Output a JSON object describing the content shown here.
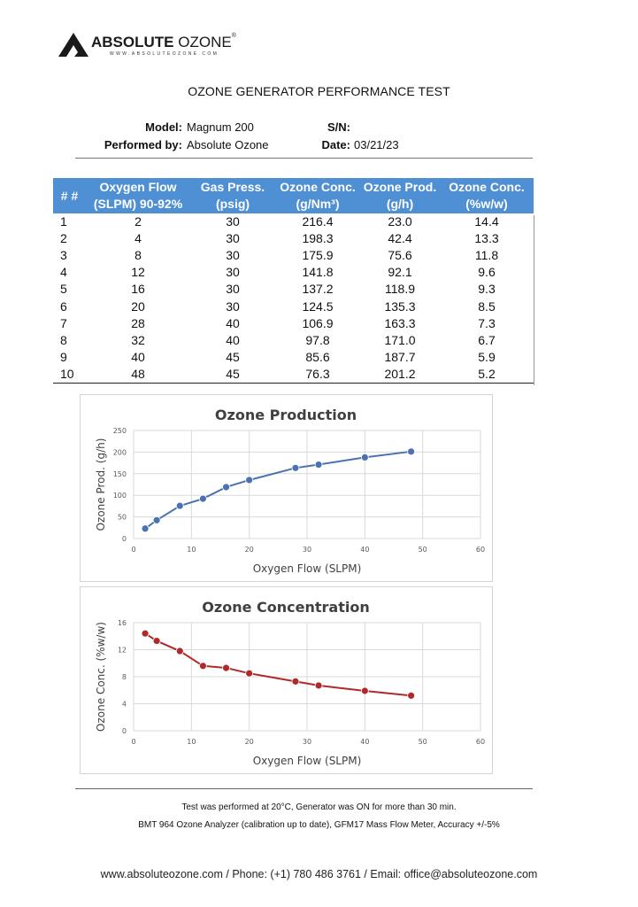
{
  "header": {
    "logo_bold": "ABSOLUTE",
    "logo_light": "OZONE",
    "logo_reg": "®",
    "logo_url": "WWW.ABSOLUTEOZONE.COM"
  },
  "title": "OZONE GENERATOR PERFORMANCE TEST",
  "meta": {
    "model_label": "Model:",
    "model_value": "Magnum 200",
    "sn_label": "S/N:",
    "sn_value": "",
    "performed_label": "Performed by:",
    "performed_value": "Absolute Ozone",
    "date_label": "Date:",
    "date_value": "03/21/23"
  },
  "table": {
    "headers": [
      [
        "# #",
        ""
      ],
      [
        "Oxygen Flow",
        "(SLPM) 90-92%"
      ],
      [
        "Gas Press.",
        "(psig)"
      ],
      [
        "Ozone Conc.",
        "(g/Nm³)"
      ],
      [
        "Ozone Prod.",
        "(g/h)"
      ],
      [
        "Ozone Conc.",
        "(%w/w)"
      ]
    ],
    "rows": [
      [
        "1",
        "2",
        "30",
        "216.4",
        "23.0",
        "14.4"
      ],
      [
        "2",
        "4",
        "30",
        "198.3",
        "42.4",
        "13.3"
      ],
      [
        "3",
        "8",
        "30",
        "175.9",
        "75.6",
        "11.8"
      ],
      [
        "4",
        "12",
        "30",
        "141.8",
        "92.1",
        "9.6"
      ],
      [
        "5",
        "16",
        "30",
        "137.2",
        "118.9",
        "9.3"
      ],
      [
        "6",
        "20",
        "30",
        "124.5",
        "135.3",
        "8.5"
      ],
      [
        "7",
        "28",
        "40",
        "106.9",
        "163.3",
        "7.3"
      ],
      [
        "8",
        "32",
        "40",
        "97.8",
        "171.0",
        "6.7"
      ],
      [
        "9",
        "40",
        "45",
        "85.6",
        "187.7",
        "5.9"
      ],
      [
        "10",
        "48",
        "45",
        "76.3",
        "201.2",
        "5.2"
      ]
    ]
  },
  "chart_data": [
    {
      "type": "line",
      "title": "Ozone Production",
      "xlabel": "Oxygen Flow (SLPM)",
      "ylabel": "Ozone Prod. (g/h)",
      "xlim": [
        0,
        60
      ],
      "ylim": [
        0,
        250
      ],
      "xticks": [
        0,
        10,
        20,
        30,
        40,
        50,
        60
      ],
      "yticks": [
        0,
        50,
        100,
        150,
        200,
        250
      ],
      "grid": true,
      "color": "#4a72b0",
      "x": [
        2,
        4,
        8,
        12,
        16,
        20,
        28,
        32,
        40,
        48
      ],
      "y": [
        23.0,
        42.4,
        75.6,
        92.1,
        118.9,
        135.3,
        163.3,
        171.0,
        187.7,
        201.2
      ]
    },
    {
      "type": "line",
      "title": "Ozone Concentration",
      "xlabel": "Oxygen Flow (SLPM)",
      "ylabel": "Ozone Conc. (%w/w)",
      "xlim": [
        0,
        60
      ],
      "ylim": [
        0,
        16
      ],
      "xticks": [
        0,
        10,
        20,
        30,
        40,
        50,
        60
      ],
      "yticks": [
        0,
        4,
        8,
        12,
        16
      ],
      "grid": true,
      "color": "#b02a2a",
      "x": [
        2,
        4,
        8,
        12,
        16,
        20,
        28,
        32,
        40,
        48
      ],
      "y": [
        14.4,
        13.3,
        11.8,
        9.6,
        9.3,
        8.5,
        7.3,
        6.7,
        5.9,
        5.2
      ]
    }
  ],
  "notes": {
    "line1": "Test was performed at 20°C, Generator was ON for more than 30 min.",
    "line2": "BMT 964 Ozone Analyzer (calibration up to date), GFM17 Mass Flow Meter, Accuracy +/-5%"
  },
  "footer": {
    "contact": "www.absoluteozone.com / Phone: (+1) 780 486 3761 / Email: office@absoluteozone.com"
  }
}
